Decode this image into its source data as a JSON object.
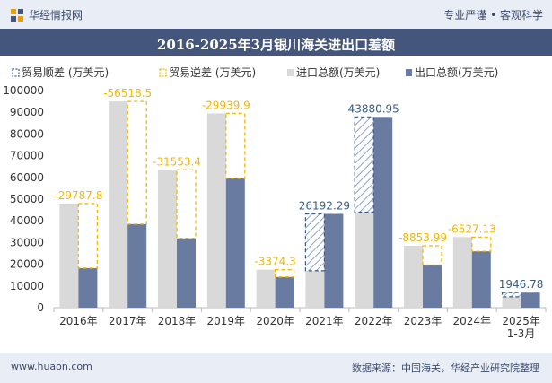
{
  "header": {
    "brand": "华经情报网",
    "tagline": "专业严谨 • 客观科学"
  },
  "footer": {
    "site": "www.huaon.com",
    "source": "数据来源：中国海关，华经产业研究院整理"
  },
  "chart_data": {
    "type": "bar",
    "title": "2016-2025年3月银川海关进出口差额",
    "categories": [
      "2016年",
      "2017年",
      "2018年",
      "2019年",
      "2020年",
      "2021年",
      "2022年",
      "2023年",
      "2024年",
      "2025年\n1-3月"
    ],
    "ylim": [
      0,
      100000
    ],
    "yticks": [
      0,
      10000,
      20000,
      30000,
      40000,
      50000,
      60000,
      70000,
      80000,
      90000,
      100000
    ],
    "legend": {
      "placement": "top",
      "items": [
        "贸易顺差 (万美元)",
        "贸易逆差 (万美元)",
        "进口总额(万美元)",
        "出口总额(万美元)"
      ]
    },
    "series": [
      {
        "name": "进口总额(万美元)",
        "color": "#d9d9d9",
        "values": [
          48000,
          95000,
          63500,
          89500,
          17500,
          17000,
          44000,
          28500,
          32500,
          5000
        ]
      },
      {
        "name": "出口总额(万美元)",
        "color": "#6a7ba2",
        "values": [
          18212.2,
          38481.5,
          31946.6,
          59560.1,
          14125.7,
          43192.29,
          87880.95,
          19646.01,
          25972.87,
          6946.78
        ]
      }
    ],
    "balance": {
      "labels": [
        "-29787.8",
        "-56518.5",
        "-31553.4",
        "-29939.9",
        "-3374.3",
        "26192.29",
        "43880.95",
        "-8853.99",
        "-6527.13",
        "1946.78"
      ],
      "surplus_color": "#3a5a83",
      "deficit_color": "#f5b800"
    },
    "colors": {
      "surplus": "#3a5a83",
      "deficit": "#f5b800",
      "import": "#d9d9d9",
      "export": "#6a7ba2"
    }
  }
}
